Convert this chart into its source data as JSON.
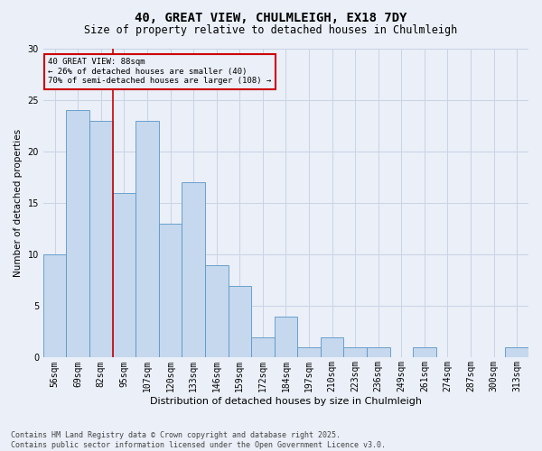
{
  "title": "40, GREAT VIEW, CHULMLEIGH, EX18 7DY",
  "subtitle": "Size of property relative to detached houses in Chulmleigh",
  "xlabel": "Distribution of detached houses by size in Chulmleigh",
  "ylabel": "Number of detached properties",
  "categories": [
    "56sqm",
    "69sqm",
    "82sqm",
    "95sqm",
    "107sqm",
    "120sqm",
    "133sqm",
    "146sqm",
    "159sqm",
    "172sqm",
    "184sqm",
    "197sqm",
    "210sqm",
    "223sqm",
    "236sqm",
    "249sqm",
    "261sqm",
    "274sqm",
    "287sqm",
    "300sqm",
    "313sqm"
  ],
  "values": [
    10,
    24,
    23,
    16,
    23,
    13,
    17,
    9,
    7,
    2,
    4,
    1,
    2,
    1,
    1,
    0,
    1,
    0,
    0,
    0,
    1
  ],
  "bar_color": "#c5d8ed",
  "bar_edge_color": "#5a96c8",
  "bar_edge_width": 0.6,
  "grid_color": "#c8d4e4",
  "background_color": "#eaeff8",
  "vline_x": 2.5,
  "vline_color": "#cc0000",
  "annotation_text_line1": "40 GREAT VIEW: 88sqm",
  "annotation_text_line2": "← 26% of detached houses are smaller (40)",
  "annotation_text_line3": "70% of semi-detached houses are larger (108) →",
  "annotation_fontsize": 6.5,
  "title_fontsize": 10,
  "subtitle_fontsize": 8.5,
  "xlabel_fontsize": 8,
  "ylabel_fontsize": 7.5,
  "tick_fontsize": 7,
  "footer_text": "Contains HM Land Registry data © Crown copyright and database right 2025.\nContains public sector information licensed under the Open Government Licence v3.0.",
  "ylim": [
    0,
    30
  ],
  "yticks": [
    0,
    5,
    10,
    15,
    20,
    25,
    30
  ]
}
